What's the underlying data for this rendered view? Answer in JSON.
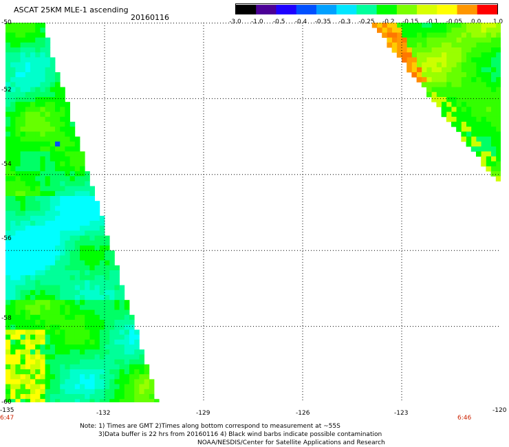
{
  "header": {
    "title": "ASCAT 25KM MLE-1 ascending",
    "date": "20160116"
  },
  "colorbar": {
    "labels": [
      "-3.0",
      "-1.0",
      "-0.5",
      "-0.4",
      "-0.35",
      "-0.3",
      "-0.25",
      "-0.2",
      "-0.15",
      "-0.1",
      "-0.05",
      "0.0",
      "1.0"
    ],
    "colors": [
      "#000000",
      "#4b0096",
      "#1e00ff",
      "#0050ff",
      "#00a0ff",
      "#00e6ff",
      "#00ff9c",
      "#00ff00",
      "#7cff00",
      "#d8ff00",
      "#ffff00",
      "#ff9600",
      "#ff0000"
    ]
  },
  "map": {
    "lat_labels": [
      "-50",
      "-52",
      "-54",
      "-56",
      "-58",
      "-60"
    ],
    "lon_labels": [
      "-135",
      "-132",
      "-129",
      "-126",
      "-123",
      "-120"
    ],
    "lon_range": [
      -135,
      -120
    ],
    "lat_range": [
      -60,
      -50
    ],
    "times": {
      "left": "6:47",
      "right": "6:46"
    },
    "swaths": [
      {
        "name": "west swath",
        "lon_at_north": -133.8,
        "lon_at_south": -130.3,
        "dominant_values": [
          "-0.25",
          "-0.2",
          "-0.15",
          "-0.05"
        ]
      },
      {
        "name": "east swath",
        "lon_at_north": -124.0,
        "lon_at_south": -120.0,
        "lat_bottom": -55.6,
        "dominant_values": [
          "-0.2",
          "-0.15",
          "-0.1",
          "0.0"
        ]
      }
    ]
  },
  "footer": {
    "note1": "Note: 1) Times are GMT 2)Times along bottom correspond to measurement at ~55S",
    "note2": "3)Data buffer is 22 hrs from 20160116 4) Black wind barbs indicate possible contamination",
    "credit": "NOAA/NESDIS/Center for Satellite Applications and Research"
  }
}
